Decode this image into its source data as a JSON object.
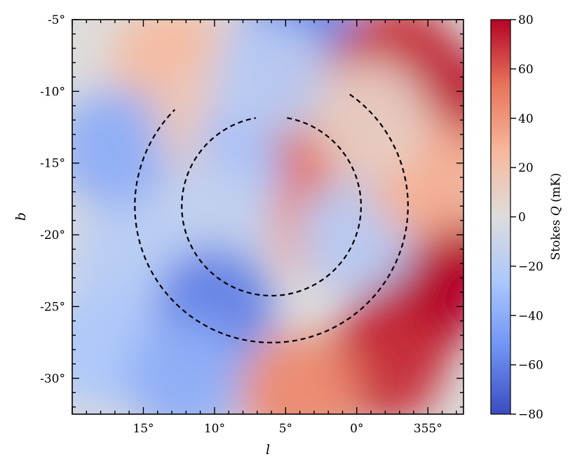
{
  "chart_data": {
    "type": "heatmap",
    "title": "",
    "xlabel": "l",
    "ylabel": "b",
    "x_ticks": [
      "15°",
      "10°",
      "5°",
      "0°",
      "355°"
    ],
    "y_ticks": [
      "-5°",
      "-10°",
      "-15°",
      "-20°",
      "-25°",
      "-30°"
    ],
    "x_range_deg": [
      20,
      -7.5
    ],
    "y_range_deg": [
      -32.5,
      -5
    ],
    "colorbar": {
      "label_prefix": "Stokes ",
      "label_var": "Q",
      "label_suffix": " (mK)",
      "ticks": [
        "80",
        "60",
        "40",
        "20",
        "0",
        "−20",
        "−40",
        "−60",
        "−80"
      ],
      "range": [
        -80,
        80
      ],
      "colormap": "coolwarm",
      "colors": [
        "#3b4cc0",
        "#6f92f3",
        "#aac7fd",
        "#dddcdc",
        "#f7b89c",
        "#e7745b",
        "#b40426"
      ]
    },
    "overlays": [
      {
        "type": "dashed-arc",
        "center_l": 6,
        "center_b": -18,
        "radius_deg": 6.3,
        "from_angle_deg": 80,
        "to_angle_deg": -260
      },
      {
        "type": "dashed-arc",
        "center_l": 6,
        "center_b": -18,
        "radius_deg": 9.6,
        "from_angle_deg": 55,
        "to_angle_deg": -225
      }
    ],
    "regions": [
      {
        "l": 4,
        "b": -6,
        "value": -60
      },
      {
        "l": -3,
        "b": -8,
        "value": 70
      },
      {
        "l": -6,
        "b": -11,
        "value": 75
      },
      {
        "l": 13,
        "b": -8,
        "value": 25
      },
      {
        "l": 17,
        "b": -14,
        "value": -40
      },
      {
        "l": 10,
        "b": -12,
        "value": 15
      },
      {
        "l": 7,
        "b": -14,
        "value": -30
      },
      {
        "l": 3,
        "b": -11,
        "value": 60
      },
      {
        "l": 2,
        "b": -19,
        "value": 40
      },
      {
        "l": 1,
        "b": -16,
        "value": 55
      },
      {
        "l": 10,
        "b": -19,
        "value": -15
      },
      {
        "l": 16,
        "b": -22,
        "value": -20
      },
      {
        "l": 18,
        "b": -28,
        "value": -25
      },
      {
        "l": 10,
        "b": -25,
        "value": -60
      },
      {
        "l": 12,
        "b": -30,
        "value": -40
      },
      {
        "l": -4,
        "b": -25,
        "value": 80
      },
      {
        "l": -6,
        "b": -22,
        "value": 80
      },
      {
        "l": -2,
        "b": -29,
        "value": 70
      },
      {
        "l": 4,
        "b": -31,
        "value": 45
      },
      {
        "l": 0,
        "b": -20,
        "value": -20
      },
      {
        "l": -5,
        "b": -16,
        "value": 30
      },
      {
        "l": 6,
        "b": -9,
        "value": -20
      },
      {
        "l": -1,
        "b": -12,
        "value": 10
      }
    ]
  }
}
